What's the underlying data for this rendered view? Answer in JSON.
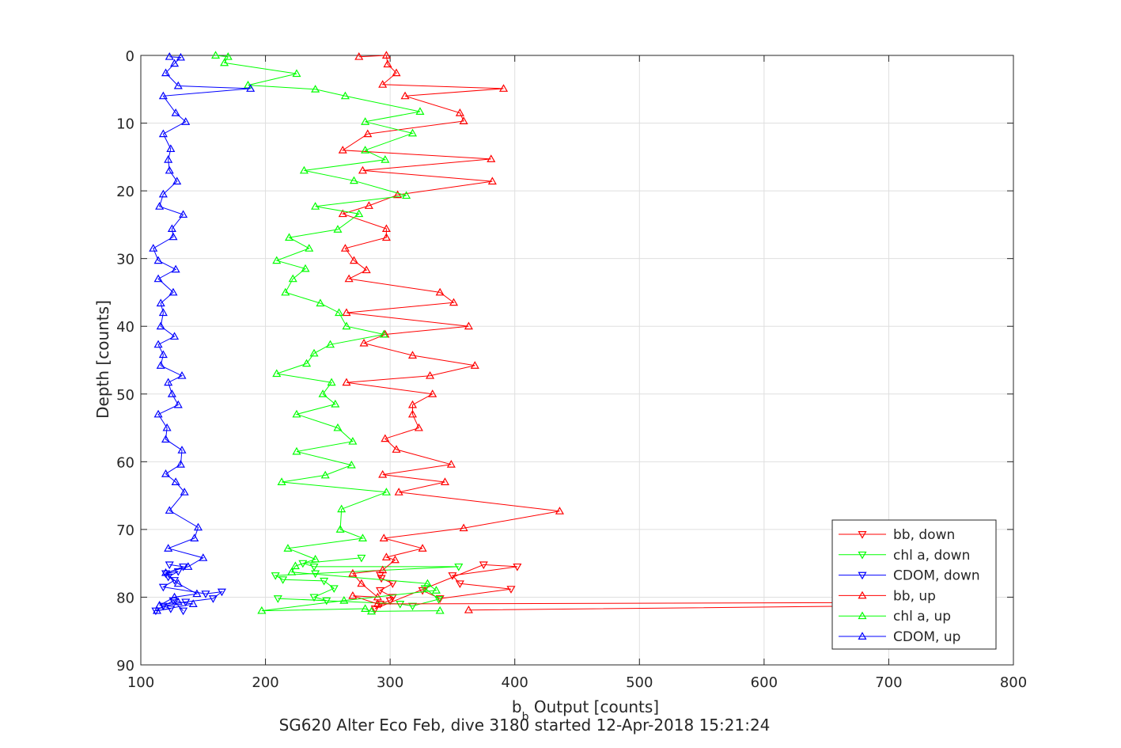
{
  "chart_data": {
    "type": "line",
    "title": "",
    "caption": "SG620 Alter Eco Feb, dive 3180 started 12-Apr-2018 15:21:24",
    "xlabel_main": "b",
    "xlabel_sub": "b",
    "xlabel_rest": " Output [counts]",
    "ylabel": "Depth [counts]",
    "xlim": [
      100,
      800
    ],
    "ylim": [
      0,
      90
    ],
    "y_reversed": true,
    "grid": true,
    "legend_position": "bottom-right",
    "xticks": [
      "100",
      "200",
      "300",
      "400",
      "500",
      "600",
      "700",
      "800"
    ],
    "yticks": [
      "0",
      "10",
      "20",
      "30",
      "40",
      "50",
      "60",
      "70",
      "80",
      "90"
    ],
    "series": [
      {
        "name": "bb, down",
        "color": "#ff0000",
        "marker": "triangle-down",
        "points": [
          [
            292,
            76.7
          ],
          [
            293,
            77.2
          ],
          [
            302,
            78
          ],
          [
            292,
            79
          ],
          [
            302,
            80
          ],
          [
            300,
            80.5
          ],
          [
            292,
            81
          ],
          [
            288,
            81.7
          ],
          [
            375,
            75.2
          ],
          [
            402,
            75.5
          ],
          [
            350,
            76.8
          ],
          [
            356,
            78
          ],
          [
            397,
            78.8
          ],
          [
            340,
            80.2
          ],
          [
            326,
            79
          ]
        ]
      },
      {
        "name": "chl a, down",
        "color": "#00ff00",
        "marker": "triangle-down",
        "points": [
          [
            277,
            74.2
          ],
          [
            230,
            75
          ],
          [
            239,
            75.5
          ],
          [
            355,
            75.5
          ],
          [
            240,
            76.5
          ],
          [
            208,
            76.8
          ],
          [
            214,
            77.4
          ],
          [
            247,
            77.6
          ],
          [
            255,
            78.7
          ],
          [
            239,
            80
          ],
          [
            249,
            80.5
          ],
          [
            210,
            80.2
          ],
          [
            308,
            81
          ],
          [
            318,
            81.3
          ],
          [
            339,
            80.3
          ],
          [
            328,
            78.7
          ]
        ]
      },
      {
        "name": "CDOM, down",
        "color": "#0000ff",
        "marker": "triangle-down",
        "points": [
          [
            123,
            75.2
          ],
          [
            134,
            75.5
          ],
          [
            120,
            76.5
          ],
          [
            130,
            76.2
          ],
          [
            122,
            77
          ],
          [
            127,
            77.5
          ],
          [
            118,
            78.5
          ],
          [
            152,
            79.5
          ],
          [
            165,
            79.2
          ],
          [
            158,
            80.2
          ],
          [
            136,
            80.7
          ],
          [
            118,
            81.3
          ],
          [
            124,
            81.7
          ],
          [
            112,
            82
          ],
          [
            126,
            80.5
          ],
          [
            134,
            82
          ]
        ]
      },
      {
        "name": "bb, up",
        "color": "#ff0000",
        "marker": "triangle-up",
        "points": [
          [
            275,
            0.2
          ],
          [
            297,
            0
          ],
          [
            298,
            1.3
          ],
          [
            305,
            2.6
          ],
          [
            294,
            4.3
          ],
          [
            391,
            4.9
          ],
          [
            312,
            6
          ],
          [
            356,
            8.5
          ],
          [
            359,
            9.7
          ],
          [
            282,
            11.6
          ],
          [
            262,
            14
          ],
          [
            381,
            15.3
          ],
          [
            278,
            17
          ],
          [
            382,
            18.6
          ],
          [
            306,
            20.6
          ],
          [
            283,
            22.2
          ],
          [
            262,
            23.4
          ],
          [
            297,
            25.6
          ],
          [
            297,
            26.9
          ],
          [
            264,
            28.5
          ],
          [
            271,
            30.3
          ],
          [
            281,
            31.7
          ],
          [
            267,
            33
          ],
          [
            340,
            35
          ],
          [
            351,
            36.5
          ],
          [
            265,
            38
          ],
          [
            363,
            40
          ],
          [
            296,
            41.2
          ],
          [
            279,
            42.5
          ],
          [
            318,
            44.3
          ],
          [
            368,
            45.8
          ],
          [
            332,
            47.3
          ],
          [
            265,
            48.3
          ],
          [
            334,
            50
          ],
          [
            318,
            51.6
          ],
          [
            318,
            53
          ],
          [
            323,
            55
          ],
          [
            296,
            56.6
          ],
          [
            305,
            58.2
          ],
          [
            349,
            60.4
          ],
          [
            294,
            61.9
          ],
          [
            344,
            63
          ],
          [
            307,
            64.5
          ],
          [
            436,
            67.3
          ],
          [
            359,
            69.8
          ],
          [
            295,
            71.3
          ],
          [
            326,
            72.8
          ],
          [
            297,
            74.1
          ],
          [
            304,
            74.5
          ],
          [
            294,
            76
          ],
          [
            270,
            76.5
          ],
          [
            277,
            78
          ],
          [
            290,
            80
          ],
          [
            270,
            79.8
          ],
          [
            290,
            81
          ],
          [
            684,
            80.8
          ],
          [
            684,
            81.3
          ],
          [
            363,
            81.9
          ]
        ]
      },
      {
        "name": "chl a, up",
        "color": "#00ff00",
        "marker": "triangle-up",
        "points": [
          [
            160,
            0
          ],
          [
            170,
            0.2
          ],
          [
            167,
            1.1
          ],
          [
            225,
            2.7
          ],
          [
            186,
            4.4
          ],
          [
            240,
            5
          ],
          [
            264,
            6
          ],
          [
            324,
            8.3
          ],
          [
            280,
            9.8
          ],
          [
            318,
            11.5
          ],
          [
            280,
            14
          ],
          [
            296,
            15.4
          ],
          [
            231,
            17
          ],
          [
            271,
            18.5
          ],
          [
            313,
            20.7
          ],
          [
            240,
            22.3
          ],
          [
            275,
            23.4
          ],
          [
            258,
            25.7
          ],
          [
            219,
            26.9
          ],
          [
            235,
            28.5
          ],
          [
            209,
            30.3
          ],
          [
            232,
            31.5
          ],
          [
            222,
            33
          ],
          [
            216,
            35
          ],
          [
            244,
            36.6
          ],
          [
            259,
            38
          ],
          [
            265,
            40
          ],
          [
            295,
            41.2
          ],
          [
            252,
            42.7
          ],
          [
            239,
            44
          ],
          [
            233,
            45.5
          ],
          [
            209,
            47
          ],
          [
            253,
            48.3
          ],
          [
            246,
            50
          ],
          [
            256,
            51.5
          ],
          [
            225,
            53
          ],
          [
            258,
            55
          ],
          [
            270,
            57
          ],
          [
            225,
            58.5
          ],
          [
            269,
            60.5
          ],
          [
            248,
            62
          ],
          [
            213,
            63
          ],
          [
            297,
            64.5
          ],
          [
            261,
            67
          ],
          [
            260,
            70
          ],
          [
            278,
            71.3
          ],
          [
            218,
            72.8
          ],
          [
            240,
            74.4
          ],
          [
            224,
            75.4
          ],
          [
            221,
            76.3
          ],
          [
            330,
            78
          ],
          [
            337,
            79
          ],
          [
            263,
            80.5
          ],
          [
            197,
            82
          ],
          [
            280,
            81.7
          ],
          [
            285,
            82.1
          ],
          [
            340,
            82
          ]
        ]
      },
      {
        "name": "CDOM, up",
        "color": "#0000ff",
        "marker": "triangle-up",
        "points": [
          [
            123,
            0.2
          ],
          [
            132,
            0.3
          ],
          [
            127,
            1.2
          ],
          [
            120,
            2.6
          ],
          [
            130,
            4.5
          ],
          [
            188,
            4.9
          ],
          [
            118,
            6
          ],
          [
            128,
            8.5
          ],
          [
            136,
            9.8
          ],
          [
            118,
            11.6
          ],
          [
            124,
            13.8
          ],
          [
            122,
            15.4
          ],
          [
            123,
            17
          ],
          [
            129,
            18.6
          ],
          [
            118,
            20.5
          ],
          [
            115,
            22.3
          ],
          [
            134,
            23.5
          ],
          [
            125,
            25.6
          ],
          [
            126,
            26.8
          ],
          [
            110,
            28.5
          ],
          [
            114,
            30.3
          ],
          [
            128,
            31.6
          ],
          [
            114,
            33
          ],
          [
            126,
            35
          ],
          [
            116,
            36.6
          ],
          [
            118,
            38
          ],
          [
            116,
            40
          ],
          [
            127,
            41.5
          ],
          [
            114,
            42.7
          ],
          [
            118,
            44.2
          ],
          [
            116,
            45.8
          ],
          [
            133,
            47.3
          ],
          [
            122,
            48.3
          ],
          [
            125,
            50
          ],
          [
            130,
            51.6
          ],
          [
            114,
            53
          ],
          [
            121,
            55
          ],
          [
            120,
            56.7
          ],
          [
            133,
            58.3
          ],
          [
            132,
            60.4
          ],
          [
            120,
            61.8
          ],
          [
            128,
            63
          ],
          [
            135,
            64.5
          ],
          [
            123,
            67.2
          ],
          [
            146,
            69.7
          ],
          [
            143,
            71.3
          ],
          [
            122,
            72.8
          ],
          [
            150,
            74.2
          ],
          [
            138,
            75.5
          ],
          [
            120,
            76.4
          ],
          [
            130,
            78
          ],
          [
            145,
            79.5
          ],
          [
            127,
            80
          ],
          [
            115,
            81.2
          ],
          [
            130,
            80.7
          ],
          [
            142,
            81
          ],
          [
            113,
            82
          ]
        ]
      }
    ]
  }
}
